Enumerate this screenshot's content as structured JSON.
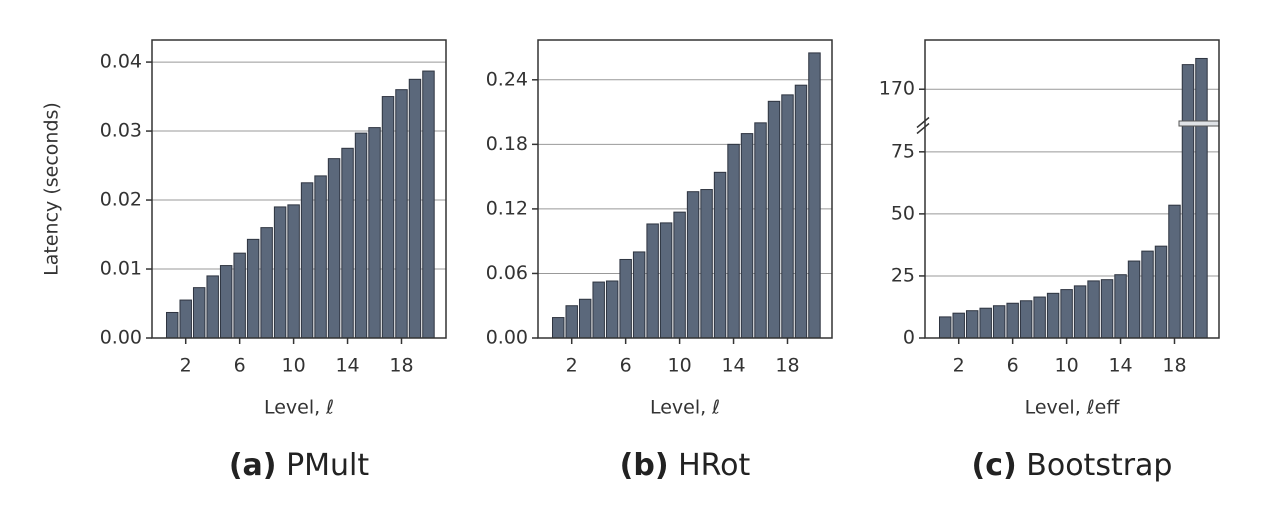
{
  "chart_data": [
    {
      "type": "bar",
      "label": "(a)",
      "title": "PMult",
      "ylabel": "Latency (seconds)",
      "xlabel": "Level, ℓ",
      "x": [
        1,
        2,
        3,
        4,
        5,
        6,
        7,
        8,
        9,
        10,
        11,
        12,
        13,
        14,
        15,
        16,
        17,
        18,
        19,
        20
      ],
      "values": [
        0.0037,
        0.0055,
        0.0073,
        0.009,
        0.0105,
        0.0123,
        0.0143,
        0.016,
        0.019,
        0.0193,
        0.0225,
        0.0235,
        0.026,
        0.0275,
        0.0297,
        0.0305,
        0.035,
        0.036,
        0.0375,
        0.0387
      ],
      "color": "#5b687b",
      "xlim": [
        -0.5,
        21.3
      ],
      "xticks": [
        2,
        6,
        10,
        14,
        18
      ],
      "ylim": [
        0,
        0.0432
      ],
      "yticks": [
        {
          "value": 0,
          "label": "0.00"
        },
        {
          "value": 0.01,
          "label": "0.01"
        },
        {
          "value": 0.02,
          "label": "0.02"
        },
        {
          "value": 0.03,
          "label": "0.03"
        },
        {
          "value": 0.04,
          "label": "0.04"
        }
      ],
      "grid": true
    },
    {
      "type": "bar",
      "label": "(b)",
      "title": "HRot",
      "xlabel": "Level, ℓ",
      "x": [
        1,
        2,
        3,
        4,
        5,
        6,
        7,
        8,
        9,
        10,
        11,
        12,
        13,
        14,
        15,
        16,
        17,
        18,
        19,
        20
      ],
      "values": [
        0.019,
        0.03,
        0.036,
        0.052,
        0.053,
        0.073,
        0.08,
        0.106,
        0.107,
        0.117,
        0.136,
        0.138,
        0.154,
        0.18,
        0.19,
        0.2,
        0.22,
        0.226,
        0.235,
        0.265
      ],
      "color": "#5b687b",
      "xlim": [
        -0.5,
        21.3
      ],
      "xticks": [
        2,
        6,
        10,
        14,
        18
      ],
      "ylim": [
        0,
        0.277
      ],
      "yticks": [
        {
          "value": 0,
          "label": "0.00"
        },
        {
          "value": 0.06,
          "label": "0.06"
        },
        {
          "value": 0.12,
          "label": "0.12"
        },
        {
          "value": 0.18,
          "label": "0.18"
        },
        {
          "value": 0.24,
          "label": "0.24"
        }
      ],
      "grid": true
    },
    {
      "type": "bar",
      "label": "(c)",
      "title": "Bootstrap",
      "xlabel": "Level, ℓeff",
      "x": [
        1,
        2,
        3,
        4,
        5,
        6,
        7,
        8,
        9,
        10,
        11,
        12,
        13,
        14,
        15,
        16,
        17,
        18,
        19,
        20
      ],
      "values": [
        8.5,
        10,
        11,
        12,
        13,
        14,
        15,
        16.5,
        18,
        19.5,
        21,
        23,
        23.5,
        25.5,
        31,
        35,
        37,
        53.5,
        174,
        175
      ],
      "color": "#5b687b",
      "xlim": [
        -0.5,
        21.3
      ],
      "xticks": [
        2,
        6,
        10,
        14,
        18
      ],
      "ylim": [
        0,
        178
      ],
      "ybreak": [
        85,
        165
      ],
      "yticks": [
        0,
        25,
        50,
        75,
        170
      ],
      "grid": true
    }
  ]
}
